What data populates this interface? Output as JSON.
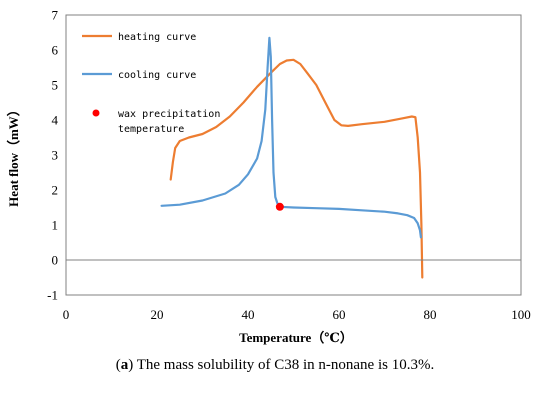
{
  "chart_data": {
    "type": "line",
    "xlabel": "Temperature（℃）",
    "ylabel": "Heat flow（mW）",
    "xlim": [
      0,
      100
    ],
    "ylim": [
      -1,
      7
    ],
    "xticks": [
      0,
      20,
      40,
      60,
      80,
      100
    ],
    "yticks": [
      -1,
      0,
      1,
      2,
      3,
      4,
      5,
      6,
      7
    ],
    "grid": false,
    "legend_position": "top-left-inside",
    "series": [
      {
        "name": "heating curve",
        "color": "#ED7D31",
        "x": [
          23.0,
          23.5,
          24.0,
          25.0,
          27.0,
          30.0,
          33.0,
          36.0,
          39.0,
          42.0,
          45.0,
          47.0,
          48.5,
          50.0,
          51.5,
          53.0,
          55.0,
          57.0,
          59.0,
          60.5,
          62.0,
          65.0,
          70.0,
          74.0,
          76.0,
          76.8,
          77.3,
          77.8,
          78.1,
          78.3
        ],
        "y": [
          2.3,
          2.8,
          3.2,
          3.4,
          3.5,
          3.6,
          3.8,
          4.1,
          4.5,
          4.95,
          5.35,
          5.6,
          5.7,
          5.72,
          5.6,
          5.35,
          5.0,
          4.5,
          4.0,
          3.85,
          3.83,
          3.88,
          3.95,
          4.05,
          4.1,
          4.08,
          3.5,
          2.5,
          1.0,
          -0.5
        ]
      },
      {
        "name": "cooling curve",
        "color": "#5B9BD5",
        "x": [
          21.0,
          25.0,
          30.0,
          35.0,
          38.0,
          40.0,
          42.0,
          43.0,
          43.8,
          44.3,
          44.7,
          45.0,
          45.3,
          45.6,
          46.0,
          46.5,
          47.0,
          50.0,
          55.0,
          60.0,
          65.0,
          70.0,
          73.0,
          75.0,
          76.5,
          77.3,
          77.8,
          78.0
        ],
        "y": [
          1.55,
          1.58,
          1.7,
          1.9,
          2.15,
          2.45,
          2.9,
          3.4,
          4.3,
          5.5,
          6.35,
          5.8,
          4.0,
          2.5,
          1.8,
          1.6,
          1.52,
          1.5,
          1.48,
          1.46,
          1.42,
          1.38,
          1.33,
          1.28,
          1.2,
          1.05,
          0.85,
          0.65
        ]
      }
    ],
    "annotations": [
      {
        "name": "wax precipitation temperature",
        "color": "#FF0000",
        "x": 47.0,
        "y": 1.52
      }
    ]
  },
  "legend": {
    "heating": "heating curve",
    "cooling": "cooling curve",
    "wax_line1": "wax precipitation",
    "wax_line2": "temperature"
  },
  "caption": {
    "prefix": "(",
    "letter": "a",
    "rest": ") The mass solubility of C38 in n-nonane is 10.3%."
  }
}
